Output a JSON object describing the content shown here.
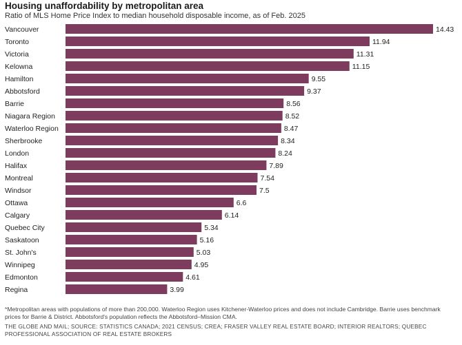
{
  "header": {
    "title": "Housing unaffordability by metropolitan area",
    "subtitle": "Ratio of MLS Home Price Index to median household disposable income, as of Feb. 2025"
  },
  "footer": {
    "footnote": "*Metropolitan areas with populations of more than 200,000. Waterloo Region uses Kitchener-Waterloo prices and does not include Cambridge. Barrie uses benchmark prices for Barrie & District. Abbotsford's population reflects the Abbotsford–Mission CMA.",
    "source": "THE GLOBE AND MAIL; SOURCE: STATISTICS CANADA; 2021 CENSUS; CREA; FRASER VALLEY REAL ESTATE BOARD; INTERIOR REALTORS; QUEBEC PROFESSIONAL ASSOCIATION OF REAL ESTATE BROKERS"
  },
  "chart_data": {
    "type": "bar",
    "orientation": "horizontal",
    "title": "Housing unaffordability by metropolitan area",
    "subtitle": "Ratio of MLS Home Price Index to median household disposable income, as of Feb. 2025",
    "categories": [
      "Vancouver",
      "Toronto",
      "Victoria",
      "Kelowna",
      "Hamilton",
      "Abbotsford",
      "Barrie",
      "Niagara Region",
      "Waterloo Region",
      "Sherbrooke",
      "London",
      "Halifax",
      "Montreal",
      "Windsor",
      "Ottawa",
      "Calgary",
      "Quebec City",
      "Saskatoon",
      "St. John's",
      "Winnipeg",
      "Edmonton",
      "Regina"
    ],
    "values": [
      14.43,
      11.94,
      11.31,
      11.15,
      9.55,
      9.37,
      8.56,
      8.52,
      8.47,
      8.34,
      8.24,
      7.89,
      7.54,
      7.5,
      6.6,
      6.14,
      5.34,
      5.16,
      5.03,
      4.95,
      4.61,
      3.99
    ],
    "value_labels": [
      "14.43",
      "11.94",
      "11.31",
      "11.15",
      "9.55",
      "9.37",
      "8.56",
      "8.52",
      "8.47",
      "8.34",
      "8.24",
      "7.89",
      "7.54",
      "7.5",
      "6.6",
      "6.14",
      "5.34",
      "5.16",
      "5.03",
      "4.95",
      "4.61",
      "3.99"
    ],
    "xlim": [
      0,
      14.43
    ],
    "grid": false,
    "bar_color": "#7d3c5e"
  }
}
